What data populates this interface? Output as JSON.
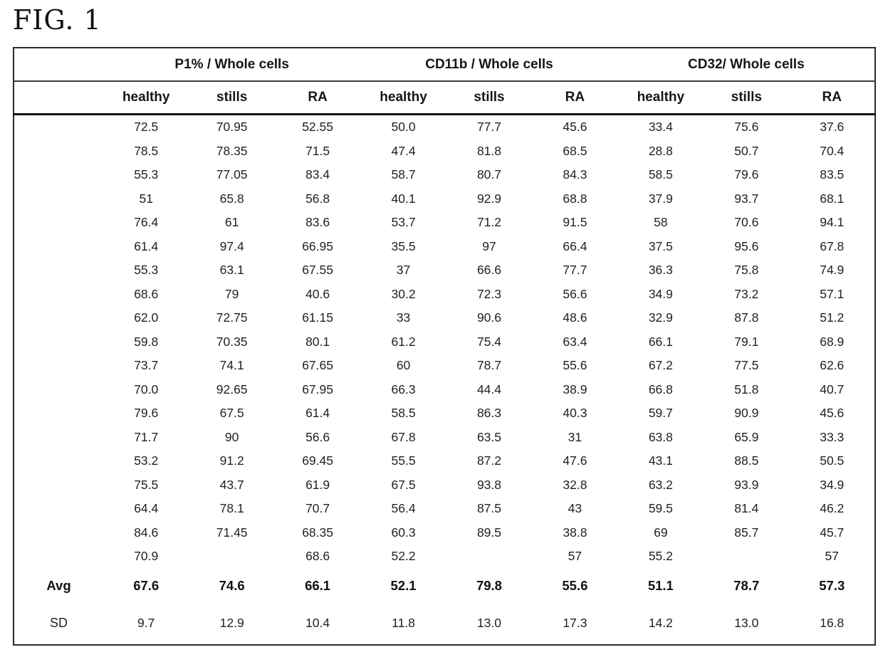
{
  "figure_label": "FIG. 1",
  "table": {
    "groups": [
      {
        "label": "P1% / Whole cells"
      },
      {
        "label": "CD11b / Whole cells"
      },
      {
        "label": "CD32/ Whole cells"
      }
    ],
    "sub_headers": [
      "healthy",
      "stills",
      "RA",
      "healthy",
      "stills",
      "RA",
      "healthy",
      "stills",
      "RA"
    ],
    "rows": [
      [
        "72.5",
        "70.95",
        "52.55",
        "50.0",
        "77.7",
        "45.6",
        "33.4",
        "75.6",
        "37.6"
      ],
      [
        "78.5",
        "78.35",
        "71.5",
        "47.4",
        "81.8",
        "68.5",
        "28.8",
        "50.7",
        "70.4"
      ],
      [
        "55.3",
        "77.05",
        "83.4",
        "58.7",
        "80.7",
        "84.3",
        "58.5",
        "79.6",
        "83.5"
      ],
      [
        "51",
        "65.8",
        "56.8",
        "40.1",
        "92.9",
        "68.8",
        "37.9",
        "93.7",
        "68.1"
      ],
      [
        "76.4",
        "61",
        "83.6",
        "53.7",
        "71.2",
        "91.5",
        "58",
        "70.6",
        "94.1"
      ],
      [
        "61.4",
        "97.4",
        "66.95",
        "35.5",
        "97",
        "66.4",
        "37.5",
        "95.6",
        "67.8"
      ],
      [
        "55.3",
        "63.1",
        "67.55",
        "37",
        "66.6",
        "77.7",
        "36.3",
        "75.8",
        "74.9"
      ],
      [
        "68.6",
        "79",
        "40.6",
        "30.2",
        "72.3",
        "56.6",
        "34.9",
        "73.2",
        "57.1"
      ],
      [
        "62.0",
        "72.75",
        "61.15",
        "33",
        "90.6",
        "48.6",
        "32.9",
        "87.8",
        "51.2"
      ],
      [
        "59.8",
        "70.35",
        "80.1",
        "61.2",
        "75.4",
        "63.4",
        "66.1",
        "79.1",
        "68.9"
      ],
      [
        "73.7",
        "74.1",
        "67.65",
        "60",
        "78.7",
        "55.6",
        "67.2",
        "77.5",
        "62.6"
      ],
      [
        "70.0",
        "92.65",
        "67.95",
        "66.3",
        "44.4",
        "38.9",
        "66.8",
        "51.8",
        "40.7"
      ],
      [
        "79.6",
        "67.5",
        "61.4",
        "58.5",
        "86.3",
        "40.3",
        "59.7",
        "90.9",
        "45.6"
      ],
      [
        "71.7",
        "90",
        "56.6",
        "67.8",
        "63.5",
        "31",
        "63.8",
        "65.9",
        "33.3"
      ],
      [
        "53.2",
        "91.2",
        "69.45",
        "55.5",
        "87.2",
        "47.6",
        "43.1",
        "88.5",
        "50.5"
      ],
      [
        "75.5",
        "43.7",
        "61.9",
        "67.5",
        "93.8",
        "32.8",
        "63.2",
        "93.9",
        "34.9"
      ],
      [
        "64.4",
        "78.1",
        "70.7",
        "56.4",
        "87.5",
        "43",
        "59.5",
        "81.4",
        "46.2"
      ],
      [
        "84.6",
        "71.45",
        "68.35",
        "60.3",
        "89.5",
        "38.8",
        "69",
        "85.7",
        "45.7"
      ],
      [
        "70.9",
        "",
        "68.6",
        "52.2",
        "",
        "57",
        "55.2",
        "",
        "57"
      ]
    ],
    "avg": {
      "label": "Avg",
      "values": [
        "67.6",
        "74.6",
        "66.1",
        "52.1",
        "79.8",
        "55.6",
        "51.1",
        "78.7",
        "57.3"
      ]
    },
    "sd": {
      "label": "SD",
      "values": [
        "9.7",
        "12.9",
        "10.4",
        "11.8",
        "13.0",
        "17.3",
        "14.2",
        "13.0",
        "16.8"
      ]
    }
  }
}
